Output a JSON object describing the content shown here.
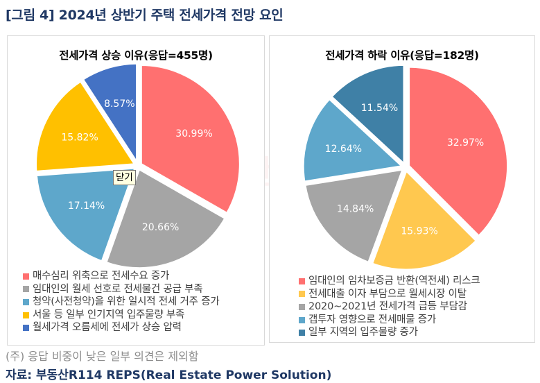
{
  "figure": {
    "title": "[그림 4] 2024년 상반기 주택 전세가격 전망 요인",
    "note": "(주) 응답 비중이 낮은 일부 의견은 제외함",
    "source": "자료: 부동산R114 REPS(Real Estate Power Solution)",
    "watermark": "부동산R114",
    "tooltip": "닫기"
  },
  "chart_data": [
    {
      "type": "pie",
      "title": "전세가격 상승 이유(응답=455명)",
      "legend_position": "bottom",
      "start": "top",
      "direction": "clockwise",
      "exploded": true,
      "categories": [
        "매수심리 위축으로 전세수요 증가",
        "임대인의 월세 선호로 전세물건 공급 부족",
        "청약(사전청약)을 위한 일시적 전세 거주 증가",
        "서울 등 일부 인기지역 입주물량 부족",
        "월세가격 오름세에 전세가 상승 압력"
      ],
      "values": [
        30.99,
        20.66,
        17.14,
        15.82,
        8.57
      ],
      "data_labels": [
        "30.99%",
        "20.66%",
        "17.14%",
        "15.82%",
        "8.57%"
      ],
      "colors": [
        "#ff7070",
        "#a5a5a5",
        "#5ea7cb",
        "#ffc000",
        "#4472c4"
      ],
      "unit": "%"
    },
    {
      "type": "pie",
      "title": "전세가격 하락 이유(응답=182명)",
      "legend_position": "bottom",
      "start": "top",
      "direction": "clockwise",
      "exploded": true,
      "categories": [
        "임대인의 임차보증금 반환(역전세) 리스크",
        "전세대출 이자 부담으로 월세시장 이탈",
        "2020~2021년 전세가격 급등 부담감",
        "갭투자 영향으로 전세매물 증가",
        "일부 지역의 입주물량 증가"
      ],
      "values": [
        32.97,
        15.93,
        14.84,
        12.64,
        11.54
      ],
      "data_labels": [
        "32.97%",
        "15.93%",
        "14.84%",
        "12.64%",
        "11.54%"
      ],
      "colors": [
        "#ff7070",
        "#ffc84f",
        "#a5a5a5",
        "#5ea7cb",
        "#3f80a6"
      ],
      "unit": "%"
    }
  ]
}
